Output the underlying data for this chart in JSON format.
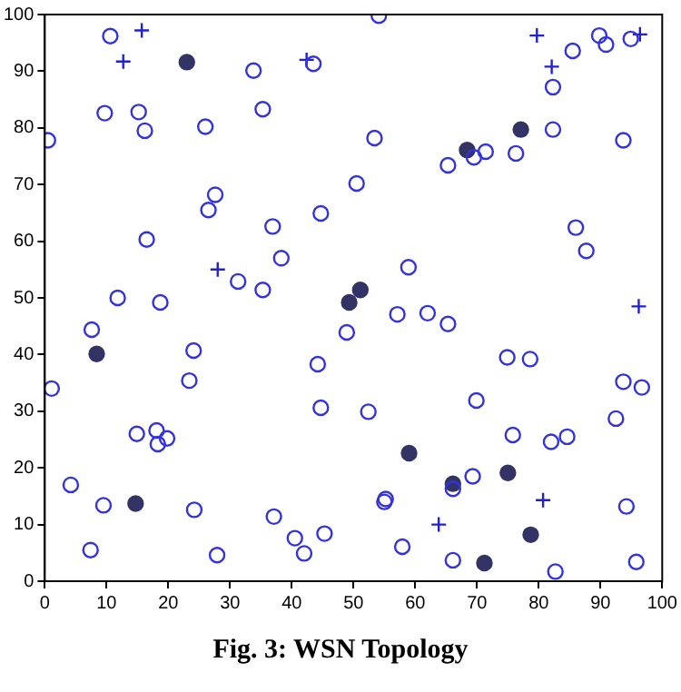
{
  "chart_data": {
    "type": "scatter",
    "title": "Fig. 3: WSN Topology",
    "xlim": [
      0,
      100
    ],
    "ylim": [
      0,
      100
    ],
    "xticks": [
      0,
      10,
      20,
      30,
      40,
      50,
      60,
      70,
      80,
      90,
      100
    ],
    "yticks": [
      0,
      10,
      20,
      30,
      40,
      50,
      60,
      70,
      80,
      90,
      100
    ],
    "grid": false,
    "legend": false,
    "series": [
      {
        "color": "#3333dd",
        "marker": "circle",
        "x": [
          10.6,
          9.7,
          15.2,
          16.2,
          0.5,
          26.0,
          33.8,
          35.3,
          43.5,
          50.5,
          27.6,
          26.5,
          44.7,
          36.9,
          38.3,
          16.5,
          31.3,
          35.3,
          11.8,
          18.7,
          54.1,
          82.3,
          85.5,
          89.8,
          90.9,
          94.9,
          82.3,
          93.7,
          53.4,
          69.5,
          71.4,
          76.3,
          65.3,
          86.0,
          87.7,
          58.9,
          7.6,
          1.1,
          24.1,
          23.4,
          14.9,
          18.1,
          18.3,
          19.8,
          4.2,
          9.5,
          24.2,
          7.4,
          27.9,
          37.1,
          40.5,
          42.0,
          45.3,
          44.7,
          44.2,
          48.9,
          57.1,
          62.0,
          65.3,
          74.9,
          78.6,
          93.7,
          96.7,
          69.9,
          92.5,
          52.4,
          75.8,
          82.0,
          84.6,
          69.3,
          55.2,
          55.0,
          66.1,
          94.2,
          57.9,
          66.1,
          82.7,
          95.8
        ],
        "values": [
          96.2,
          82.6,
          82.8,
          79.5,
          77.8,
          80.2,
          90.1,
          83.3,
          91.3,
          70.2,
          68.2,
          65.5,
          64.9,
          62.6,
          57.0,
          60.3,
          52.9,
          51.4,
          50.0,
          49.2,
          99.8,
          87.2,
          93.6,
          96.3,
          94.7,
          95.7,
          79.7,
          77.8,
          78.2,
          74.8,
          75.8,
          75.5,
          73.4,
          62.4,
          58.3,
          55.4,
          44.4,
          34.0,
          40.7,
          35.4,
          26.0,
          26.6,
          24.2,
          25.2,
          17.0,
          13.4,
          12.6,
          5.5,
          4.6,
          11.4,
          7.6,
          4.9,
          8.4,
          30.6,
          38.3,
          43.9,
          47.1,
          47.3,
          45.4,
          39.5,
          39.2,
          35.2,
          34.2,
          31.9,
          28.7,
          29.9,
          25.8,
          24.6,
          25.5,
          18.5,
          14.5,
          14.0,
          16.3,
          13.2,
          6.1,
          3.7,
          1.7,
          3.4
        ]
      },
      {
        "color": "#2222cc",
        "marker": "cross",
        "x": [
          15.7,
          12.7,
          28.0,
          42.4,
          79.7,
          82.1,
          96.4,
          96.2,
          63.8,
          80.7
        ],
        "values": [
          97.2,
          91.7,
          55.0,
          92.0,
          96.3,
          90.8,
          96.5,
          48.5,
          10.0,
          14.3
        ]
      },
      {
        "color": "#333366",
        "marker": "circle",
        "x": [
          23.0,
          49.3,
          51.1,
          77.1,
          68.4,
          8.4,
          14.7,
          59.0,
          75.0,
          78.7,
          71.2,
          66.1
        ],
        "values": [
          91.6,
          49.2,
          51.4,
          79.7,
          76.1,
          40.1,
          13.7,
          22.6,
          19.1,
          8.2,
          3.2,
          17.2
        ]
      }
    ]
  }
}
